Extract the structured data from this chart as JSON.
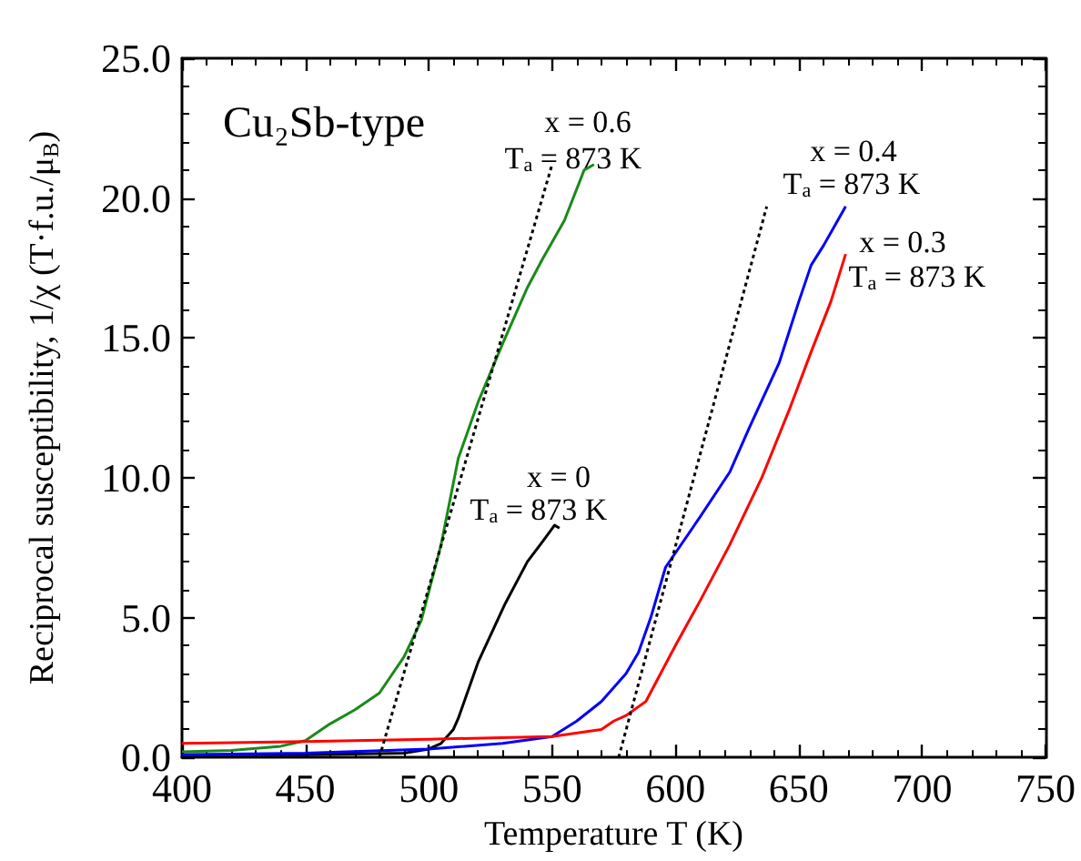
{
  "chart_data": {
    "type": "line",
    "xlabel": "Temperature T (K)",
    "ylabel": "Reciprocal susceptibility, 1/χ (T·f.u./μ$_{B}$)",
    "xlim": [
      400,
      750
    ],
    "ylim": [
      0,
      25
    ],
    "xticks": [
      400,
      450,
      500,
      550,
      600,
      650,
      700,
      750
    ],
    "yticks": [
      {
        "value": 0,
        "label": "0.0"
      },
      {
        "value": 5,
        "label": "5.0"
      },
      {
        "value": 10,
        "label": "10.0"
      },
      {
        "value": 15,
        "label": "15.0"
      },
      {
        "value": 20,
        "label": "20.0"
      },
      {
        "value": 25,
        "label": "25.0"
      }
    ],
    "marker": "none",
    "series": [
      {
        "color": "#1a8a1a",
        "line_style": "solid",
        "x": [
          400,
          420,
          440,
          450,
          460,
          470,
          480,
          490,
          497,
          505,
          512,
          520,
          530,
          540,
          546,
          555,
          563,
          567
        ],
        "values": [
          0.2,
          0.25,
          0.4,
          0.6,
          1.2,
          1.7,
          2.3,
          3.6,
          4.9,
          7.6,
          10.7,
          12.7,
          14.8,
          16.8,
          17.8,
          19.2,
          21.0,
          21.2
        ]
      },
      {
        "color": "#000000",
        "line_style": "solid",
        "x": [
          400,
          450,
          490,
          500,
          505,
          510,
          512,
          516,
          520,
          531,
          540,
          546,
          551,
          553
        ],
        "values": [
          0.1,
          0.1,
          0.15,
          0.3,
          0.5,
          1.0,
          1.4,
          2.4,
          3.4,
          5.5,
          7.0,
          7.7,
          8.3,
          8.2
        ]
      },
      {
        "color": "#0000ff",
        "line_style": "solid",
        "x": [
          400,
          450,
          500,
          530,
          550,
          560,
          570,
          580,
          585,
          590,
          596,
          610,
          622,
          630,
          642,
          650,
          655,
          660,
          669
        ],
        "values": [
          0.1,
          0.15,
          0.3,
          0.5,
          0.75,
          1.3,
          2.0,
          3.0,
          3.75,
          5.0,
          6.8,
          8.6,
          10.2,
          11.8,
          14.1,
          16.3,
          17.6,
          18.3,
          19.7
        ]
      },
      {
        "color": "#ff0000",
        "line_style": "solid",
        "x": [
          400,
          450,
          500,
          550,
          570,
          575,
          580,
          588,
          600,
          610,
          622,
          635,
          646,
          655,
          663,
          669
        ],
        "values": [
          0.5,
          0.57,
          0.65,
          0.75,
          1.0,
          1.3,
          1.5,
          2.0,
          4.0,
          5.6,
          7.6,
          10.0,
          12.4,
          14.5,
          16.3,
          18.0
        ]
      },
      {
        "color": "#000000",
        "line_style": "dotted",
        "x": [
          480,
          550
        ],
        "values": [
          0,
          21.2
        ]
      },
      {
        "color": "#000000",
        "line_style": "dotted",
        "x": [
          577,
          637
        ],
        "values": [
          0,
          19.7
        ]
      }
    ],
    "annotations": [
      "Cu₂Sb-type",
      "x = 0.6",
      "T$_{a}$ = 873 K",
      "x = 0.4",
      "T$_{a}$ = 873 K",
      "x = 0.3",
      "T$_{a}$ = 873 K",
      "x = 0",
      "T$_{a}$ = 873 K"
    ]
  }
}
